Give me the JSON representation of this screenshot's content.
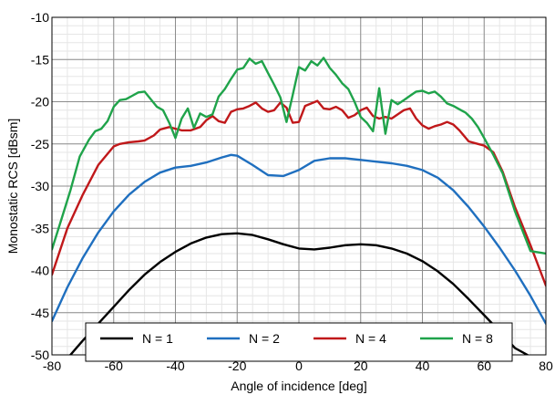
{
  "chart_data": {
    "type": "line",
    "xlabel": "Angle of incidence [deg]",
    "ylabel": "Monostatic RCS [dBsm]",
    "xlim": [
      -80,
      80
    ],
    "ylim": [
      -50,
      -10
    ],
    "xticks": [
      -80,
      -60,
      -40,
      -20,
      0,
      20,
      40,
      60,
      80
    ],
    "yticks": [
      -10,
      -15,
      -20,
      -25,
      -30,
      -35,
      -40,
      -45,
      -50
    ],
    "xtick_labels": [
      "-80",
      "-60",
      "-40",
      "-20",
      "0",
      "20",
      "40",
      "60",
      "80"
    ],
    "ytick_labels": [
      "-10",
      "-15",
      "-20",
      "-25",
      "-30",
      "-35",
      "-40",
      "-45",
      "-50"
    ],
    "grid": true,
    "minor_grid_step": [
      5,
      1
    ],
    "legend_position": "bottom-center",
    "series": [
      {
        "name": "N = 1",
        "color": "#000000",
        "x": [
          -74,
          -70,
          -65,
          -60,
          -55,
          -50,
          -45,
          -40,
          -35,
          -30,
          -25,
          -20,
          -15,
          -10,
          -5,
          0,
          5,
          10,
          15,
          20,
          25,
          30,
          35,
          40,
          45,
          50,
          55,
          60,
          65,
          70,
          74
        ],
        "y": [
          -50,
          -48.3,
          -46.3,
          -44.3,
          -42.3,
          -40.5,
          -39.0,
          -37.8,
          -36.8,
          -36.1,
          -35.7,
          -35.6,
          -35.8,
          -36.3,
          -36.9,
          -37.4,
          -37.5,
          -37.3,
          -37.0,
          -36.9,
          -37.0,
          -37.4,
          -38.0,
          -38.9,
          -40.1,
          -41.6,
          -43.4,
          -45.3,
          -47.2,
          -49.2,
          -50
        ]
      },
      {
        "name": "N = 2",
        "color": "#1f6fbf",
        "x": [
          -80,
          -75,
          -70,
          -65,
          -60,
          -55,
          -50,
          -45,
          -40,
          -35,
          -30,
          -25,
          -22,
          -20,
          -15,
          -10,
          -5,
          0,
          5,
          10,
          15,
          20,
          25,
          30,
          35,
          40,
          45,
          50,
          55,
          60,
          65,
          70,
          75,
          80
        ],
        "y": [
          -46,
          -42,
          -38.5,
          -35.5,
          -33,
          -31,
          -29.5,
          -28.4,
          -27.8,
          -27.6,
          -27.2,
          -26.6,
          -26.3,
          -26.4,
          -27.5,
          -28.7,
          -28.8,
          -28.1,
          -27.0,
          -26.7,
          -26.7,
          -26.9,
          -27.1,
          -27.3,
          -27.6,
          -28.1,
          -29.0,
          -30.5,
          -32.5,
          -34.8,
          -37.3,
          -40,
          -43,
          -46.3
        ]
      },
      {
        "name": "N = 4",
        "color": "#c0181a",
        "x": [
          -80,
          -75,
          -70,
          -65,
          -60,
          -58,
          -55,
          -52,
          -50,
          -47,
          -45,
          -42,
          -40,
          -38,
          -35,
          -32,
          -30,
          -28,
          -26,
          -24,
          -22,
          -20,
          -18,
          -16,
          -14,
          -12,
          -10,
          -8,
          -6,
          -4,
          -2,
          0,
          2,
          4,
          6,
          8,
          10,
          12,
          14,
          16,
          18,
          20,
          22,
          24,
          26,
          28,
          30,
          32,
          34,
          36,
          38,
          40,
          42,
          44,
          46,
          48,
          50,
          52,
          55,
          58,
          60,
          63,
          66,
          70,
          75,
          80
        ],
        "y": [
          -40.5,
          -35,
          -31,
          -27.5,
          -25.3,
          -25,
          -24.8,
          -24.7,
          -24.6,
          -24,
          -23.3,
          -23.0,
          -23.2,
          -23.4,
          -23.4,
          -23.0,
          -22.2,
          -21.7,
          -22.3,
          -22.5,
          -21.2,
          -20.9,
          -20.8,
          -20.5,
          -20.1,
          -20.8,
          -21.2,
          -21.0,
          -20.1,
          -20.7,
          -22.5,
          -22.4,
          -20.5,
          -20.2,
          -19.9,
          -20.8,
          -20.9,
          -20.6,
          -21.0,
          -21.9,
          -21.6,
          -21.0,
          -20.7,
          -21.7,
          -22.0,
          -21.8,
          -22.0,
          -21.5,
          -21.0,
          -20.8,
          -22.0,
          -22.8,
          -23.2,
          -22.9,
          -22.7,
          -22.4,
          -22.7,
          -23.4,
          -24.7,
          -25.0,
          -25.2,
          -26.0,
          -28.3,
          -32.5,
          -37,
          -41.8
        ]
      },
      {
        "name": "N = 8",
        "color": "#1fa34a",
        "x": [
          -80,
          -77,
          -74,
          -71,
          -68,
          -66,
          -64,
          -62,
          -60,
          -58,
          -56,
          -54,
          -52,
          -50,
          -48,
          -46,
          -44,
          -42,
          -40,
          -38,
          -36,
          -34,
          -32,
          -30,
          -28,
          -26,
          -24,
          -22,
          -20,
          -18,
          -16,
          -14,
          -12,
          -10,
          -8,
          -6,
          -4,
          -2,
          0,
          2,
          4,
          6,
          8,
          10,
          12,
          14,
          16,
          18,
          20,
          22,
          24,
          26,
          28,
          30,
          32,
          34,
          36,
          38,
          40,
          42,
          44,
          46,
          48,
          50,
          52,
          54,
          56,
          58,
          60,
          63,
          66,
          70,
          75,
          80
        ],
        "y": [
          -37.5,
          -34,
          -30.5,
          -26.5,
          -24.5,
          -23.5,
          -23.2,
          -22.3,
          -20.6,
          -19.8,
          -19.7,
          -19.3,
          -18.9,
          -18.8,
          -19.7,
          -20.6,
          -21.0,
          -22.5,
          -24.3,
          -22.0,
          -20.8,
          -23.1,
          -21.4,
          -21.8,
          -21.5,
          -19.4,
          -18.5,
          -17.3,
          -16.2,
          -16.0,
          -14.9,
          -15.5,
          -15.2,
          -16.6,
          -18.0,
          -19.5,
          -22.4,
          -19.2,
          -15.9,
          -16.3,
          -15.2,
          -15.7,
          -14.8,
          -16.0,
          -16.8,
          -17.8,
          -18.5,
          -20.0,
          -21.8,
          -22.5,
          -23.5,
          -18.4,
          -23.8,
          -19.8,
          -20.3,
          -19.8,
          -19.3,
          -18.8,
          -18.7,
          -19.0,
          -18.8,
          -19.4,
          -20.2,
          -20.5,
          -20.9,
          -21.3,
          -22.0,
          -23.0,
          -24.3,
          -26.3,
          -28.5,
          -33,
          -37.7,
          -38
        ]
      }
    ]
  }
}
